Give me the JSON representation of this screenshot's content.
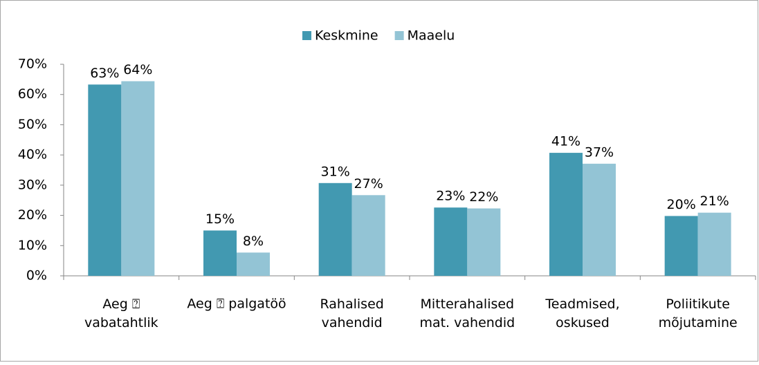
{
  "chart_data": {
    "type": "bar",
    "categories": [
      "Aeg ⍰\nvabatahtlik",
      "Aeg ⍰ palgatöö",
      "Rahalised\nvahendid",
      "Mitterahalised\nmat. vahendid",
      "Teadmised,\noskused",
      "Poliitikute\nmõjutamine"
    ],
    "series": [
      {
        "name": "Keskmine",
        "color": "#4299b1",
        "values": [
          63.3,
          15,
          30.7,
          22.6,
          40.7,
          19.8
        ],
        "value_labels": [
          "63%",
          "15%",
          "31%",
          "23%",
          "41%",
          "20%"
        ]
      },
      {
        "name": "Maaelu",
        "color": "#93c4d5",
        "values": [
          64.4,
          7.7,
          26.7,
          22.3,
          37.1,
          20.9
        ],
        "value_labels": [
          "64%",
          "8%",
          "27%",
          "22%",
          "37%",
          "21%"
        ]
      }
    ],
    "ylim": [
      0,
      70
    ],
    "yticks": [
      {
        "value": 0,
        "label": "0%"
      },
      {
        "value": 10,
        "label": "10%"
      },
      {
        "value": 20,
        "label": "20%"
      },
      {
        "value": 30,
        "label": "30%"
      },
      {
        "value": 40,
        "label": "40%"
      },
      {
        "value": 50,
        "label": "50%"
      },
      {
        "value": 60,
        "label": "60%"
      },
      {
        "value": 70,
        "label": "70%"
      }
    ],
    "legend": "top"
  }
}
